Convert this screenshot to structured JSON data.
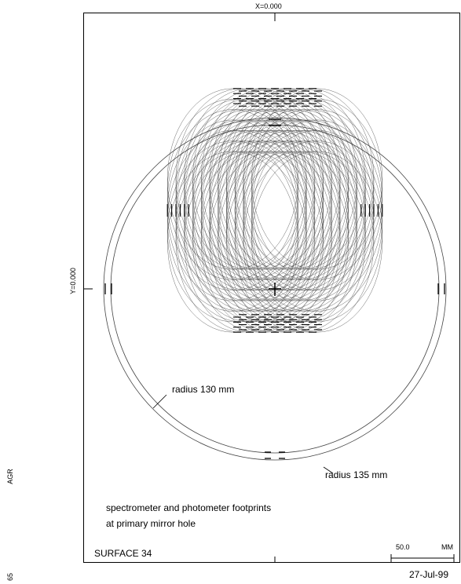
{
  "x_axis_label": "X=0.000",
  "y_axis_label": "Y=0.000",
  "side_label": "AGR",
  "corner_number": "65",
  "annotations": {
    "inner_circle": "radius 130 mm",
    "outer_circle": "radius 135 mm"
  },
  "caption_line1": "spectrometer and photometer footprints",
  "caption_line2": "at primary mirror hole",
  "surface_label": "SURFACE  34",
  "scale_bar": {
    "value": "50.0",
    "unit": "MM",
    "length_mm": 50
  },
  "date": "27-Jul-99",
  "circles_mm": {
    "inner_radius": 130,
    "outer_radius": 135
  },
  "footprints": {
    "count_x": 11,
    "count_y": 7,
    "rx_mm": 52,
    "ry_mm": 72,
    "center_spread_x_mm": 67,
    "center_spread_y_mm": 50
  },
  "colors": {
    "line": "#000000",
    "footprint": "#3a3a3a",
    "background": "#ffffff"
  }
}
